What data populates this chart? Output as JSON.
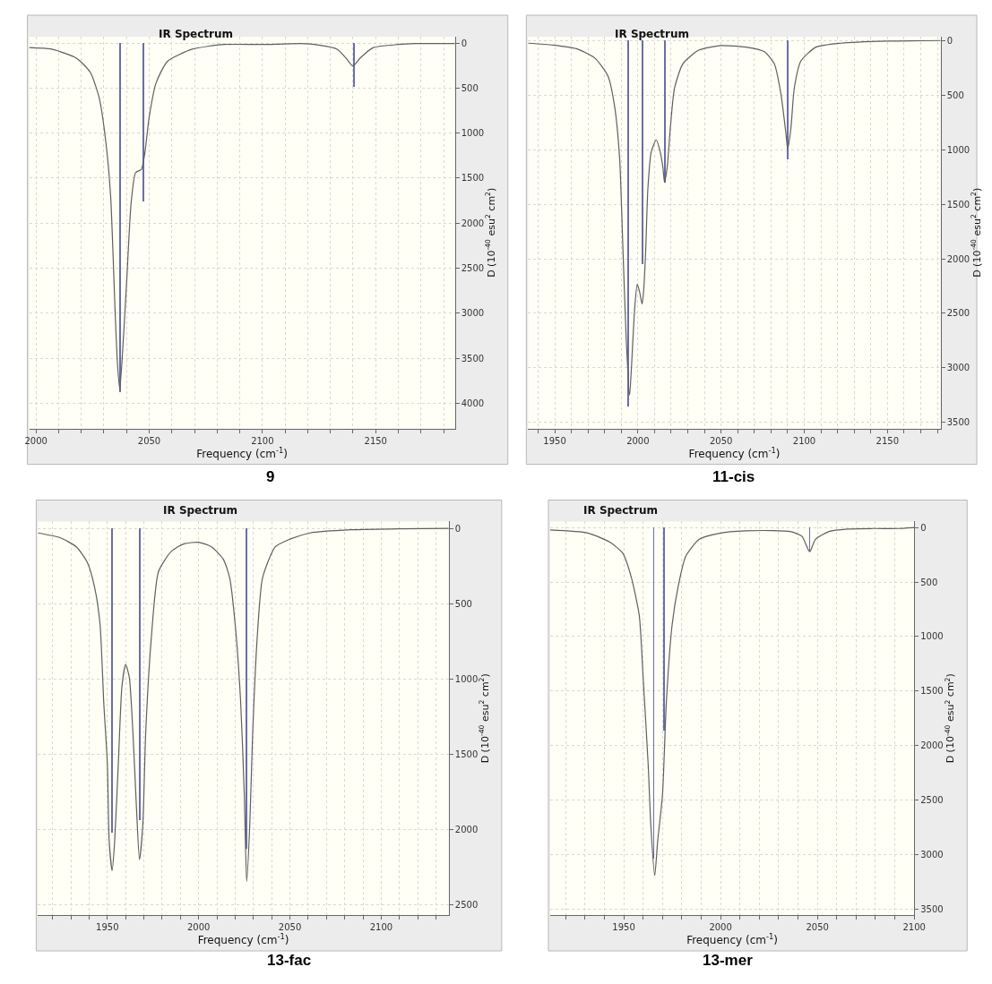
{
  "chart_data": [
    {
      "type": "line",
      "title": "IR Spectrum",
      "xlabel": "Frequency (cm$^{-1}$)",
      "ylabel": "D (10$^{-40}$ esu$^{2}$ cm$^{2}$)",
      "annotations": [
        "9"
      ],
      "xlim": [
        1997,
        2185
      ],
      "ylim": [
        4280,
        -70
      ],
      "xticks": [
        2000,
        {
          "value": 2010,
          "label": null
        },
        {
          "value": 2020,
          "label": null
        },
        {
          "value": 2030,
          "label": null
        },
        {
          "value": 2040,
          "label": null
        },
        2050,
        {
          "value": 2060,
          "label": null
        },
        {
          "value": 2070,
          "label": null
        },
        {
          "value": 2080,
          "label": null
        },
        {
          "value": 2090,
          "label": null
        },
        2100,
        {
          "value": 2110,
          "label": null
        },
        {
          "value": 2120,
          "label": null
        },
        {
          "value": 2130,
          "label": null
        },
        {
          "value": 2140,
          "label": null
        },
        2150,
        {
          "value": 2160,
          "label": null
        },
        {
          "value": 2170,
          "label": null
        },
        {
          "value": 2180,
          "label": null
        }
      ],
      "yticks": [
        0,
        500,
        1000,
        1500,
        2000,
        2500,
        3000,
        3500,
        4000
      ],
      "grid": true,
      "series": [
        {
          "color": "#5f5f5f",
          "x": [
            1997,
            2007,
            2018,
            2024,
            2028,
            2031,
            2033,
            2035,
            2036,
            2037,
            2038,
            2040,
            2042,
            2044,
            2046.5,
            2048,
            2050,
            2053,
            2058,
            2069,
            2083,
            2100,
            2117,
            2125,
            2133,
            2137,
            2140,
            2143,
            2149,
            2160,
            2167,
            2185
          ],
          "values": [
            51,
            69,
            171,
            326,
            617,
            1131,
            1713,
            3016,
            3564,
            3838,
            3530,
            2673,
            1782,
            1439,
            1405,
            1234,
            822,
            446,
            206,
            69,
            17,
            17,
            7,
            24,
            69,
            171,
            257,
            171,
            51,
            17,
            7,
            7
          ]
        },
        {
          "type": "bar",
          "color": "#6a6ea6",
          "x": [
            2036.8,
            2047.2,
            2140.3
          ],
          "values": [
            3872,
            1755,
            487
          ]
        }
      ]
    },
    {
      "type": "line",
      "title": "IR Spectrum",
      "xlabel": "Frequency (cm$^{-1}$)",
      "ylabel": "D (10$^{-40}$ esu$^{2}$ cm$^{2}$)",
      "annotations": [
        "11-cis"
      ],
      "xlim": [
        1934,
        2182
      ],
      "ylim": [
        3555,
        -35
      ],
      "xticks": [
        {
          "value": 1940,
          "label": null
        },
        1950,
        {
          "value": 1960,
          "label": null
        },
        {
          "value": 1970,
          "label": null
        },
        {
          "value": 1980,
          "label": null
        },
        {
          "value": 1990,
          "label": null
        },
        2000,
        {
          "value": 2010,
          "label": null
        },
        {
          "value": 2020,
          "label": null
        },
        {
          "value": 2030,
          "label": null
        },
        {
          "value": 2040,
          "label": null
        },
        2050,
        {
          "value": 2060,
          "label": null
        },
        {
          "value": 2070,
          "label": null
        },
        {
          "value": 2080,
          "label": null
        },
        {
          "value": 2090,
          "label": null
        },
        2100,
        {
          "value": 2110,
          "label": null
        },
        {
          "value": 2120,
          "label": null
        },
        {
          "value": 2130,
          "label": null
        },
        {
          "value": 2140,
          "label": null
        },
        2150,
        {
          "value": 2160,
          "label": null
        },
        {
          "value": 2170,
          "label": null
        },
        {
          "value": 2180,
          "label": null
        }
      ],
      "yticks": [
        0,
        500,
        1000,
        1500,
        2000,
        2500,
        3000,
        3500
      ],
      "grid": true,
      "series": [
        {
          "color": "#5f5f5f",
          "x": [
            1934,
            1949,
            1963,
            1974,
            1982,
            1986,
            1989,
            1991,
            1993,
            1995,
            1996,
            1998,
            1999.6,
            2001,
            2002.5,
            2003.4,
            2004.7,
            2006,
            2008,
            2011,
            2013,
            2015,
            2016,
            2017.6,
            2019.5,
            2022,
            2027,
            2036.5,
            2050,
            2065,
            2076,
            2082,
            2086,
            2089,
            2090,
            2092,
            2094,
            2098,
            2107,
            2122,
            2150,
            2182
          ],
          "values": [
            25,
            42,
            75,
            159,
            326,
            604,
            1078,
            1913,
            2749,
            3250,
            3027,
            2470,
            2233,
            2303,
            2414,
            2303,
            1913,
            1356,
            1022,
            911,
            994,
            1161,
            1300,
            1161,
            799,
            437,
            214,
            89,
            47,
            61,
            103,
            214,
            493,
            855,
            994,
            799,
            437,
            187,
            61,
            25,
            6,
            0
          ]
        },
        {
          "type": "bar",
          "color": "#6a6ea6",
          "x": [
            1994.5,
            2002.8,
            2016.3,
            2090.2
          ],
          "values": [
            3356,
            2047,
            1300,
            1092
          ]
        }
      ]
    },
    {
      "type": "line",
      "title": "IR Spectrum",
      "xlabel": "Frequency (cm$^{-1}$)",
      "ylabel": "D (10$^{-40}$ esu$^{2}$ cm$^{2}$)",
      "annotations": [
        "13-fac"
      ],
      "xlim": [
        1912,
        2137
      ],
      "ylim": [
        2570,
        -45
      ],
      "xticks": [
        {
          "value": 1920,
          "label": null
        },
        {
          "value": 1930,
          "label": null
        },
        {
          "value": 1940,
          "label": null
        },
        1950,
        {
          "value": 1960,
          "label": null
        },
        {
          "value": 1970,
          "label": null
        },
        {
          "value": 1980,
          "label": null
        },
        {
          "value": 1990,
          "label": null
        },
        2000,
        {
          "value": 2010,
          "label": null
        },
        {
          "value": 2020,
          "label": null
        },
        {
          "value": 2030,
          "label": null
        },
        {
          "value": 2040,
          "label": null
        },
        2050,
        {
          "value": 2060,
          "label": null
        },
        {
          "value": 2070,
          "label": null
        },
        {
          "value": 2080,
          "label": null
        },
        {
          "value": 2090,
          "label": null
        },
        2100,
        {
          "value": 2110,
          "label": null
        },
        {
          "value": 2120,
          "label": null
        },
        {
          "value": 2130,
          "label": null
        }
      ],
      "yticks": [
        0,
        500,
        1000,
        1500,
        2000,
        2500
      ],
      "grid": true,
      "series": [
        {
          "color": "#5f5f5f",
          "x": [
            1912,
            1924,
            1933,
            1939,
            1943,
            1946,
            1948,
            1950,
            1951,
            1952.6,
            1954,
            1956,
            1958,
            1960,
            1962,
            1964,
            1966,
            1967.6,
            1969.4,
            1971,
            1974,
            1978,
            1985,
            1992,
            2000,
            2007,
            2013.5,
            2017,
            2020,
            2023,
            2025,
            2026.3,
            2028,
            2029.6,
            2032,
            2035,
            2042,
            2050,
            2061,
            2083.5,
            2109.5,
            2137
          ],
          "values": [
            31,
            62,
            123,
            226,
            391,
            638,
            1152,
            1564,
            2078,
            2274,
            2078,
            1564,
            1049,
            905,
            988,
            1358,
            1872,
            2202,
            1975,
            1358,
            741,
            288,
            154,
            103,
            93,
            123,
            206,
            329,
            638,
            1152,
            1770,
            2346,
            1975,
            1358,
            741,
            329,
            123,
            72,
            31,
            10,
            4,
            0
          ]
        },
        {
          "type": "bar",
          "color": "#6a6ea6",
          "x": [
            1952.6,
            1968,
            2026.3
          ],
          "values": [
            2027,
            1944,
            2130
          ]
        }
      ]
    },
    {
      "type": "line",
      "title": "IR Spectrum",
      "xlabel": "Frequency (cm$^{-1}$)",
      "ylabel": "D (10$^{-40}$ esu$^{2}$ cm$^{2}$)",
      "annotations": [
        "13-mer"
      ],
      "xlim": [
        1912,
        2100
      ],
      "ylim": [
        3555,
        -55
      ],
      "xticks": [
        {
          "value": 1920,
          "label": null
        },
        {
          "value": 1930,
          "label": null
        },
        {
          "value": 1940,
          "label": null
        },
        1950,
        {
          "value": 1960,
          "label": null
        },
        {
          "value": 1970,
          "label": null
        },
        {
          "value": 1980,
          "label": null
        },
        {
          "value": 1990,
          "label": null
        },
        2000,
        {
          "value": 2010,
          "label": null
        },
        {
          "value": 2020,
          "label": null
        },
        {
          "value": 2030,
          "label": null
        },
        {
          "value": 2040,
          "label": null
        },
        2050,
        {
          "value": 2060,
          "label": null
        },
        {
          "value": 2070,
          "label": null
        },
        {
          "value": 2080,
          "label": null
        },
        {
          "value": 2090,
          "label": null
        },
        2100
      ],
      "yticks": [
        0,
        500,
        1000,
        1500,
        2000,
        2500,
        3000,
        3500
      ],
      "grid": true,
      "series": [
        {
          "color": "#5f5f5f",
          "x": [
            1912,
            1931.5,
            1943,
            1949.5,
            1954,
            1958,
            1960,
            1962.6,
            1964,
            1966,
            1967.5,
            1970,
            1972,
            1975,
            1978,
            1982,
            1989,
            2000,
            2013,
            2026,
            2036,
            2042,
            2046,
            2049,
            2056,
            2065.5,
            2078.6,
            2091.7,
            2100
          ],
          "values": [
            23,
            51,
            136,
            236,
            463,
            805,
            1373,
            2169,
            2738,
            3193,
            2880,
            2454,
            1601,
            890,
            549,
            264,
            108,
            51,
            31,
            28,
            37,
            80,
            222,
            108,
            37,
            14,
            9,
            9,
            0
          ]
        },
        {
          "type": "bar",
          "color": "#6a6ea6",
          "x": [
            1965.4,
            1970.8,
            2046
          ],
          "values": [
            3037,
            1865,
            222
          ]
        }
      ]
    }
  ]
}
